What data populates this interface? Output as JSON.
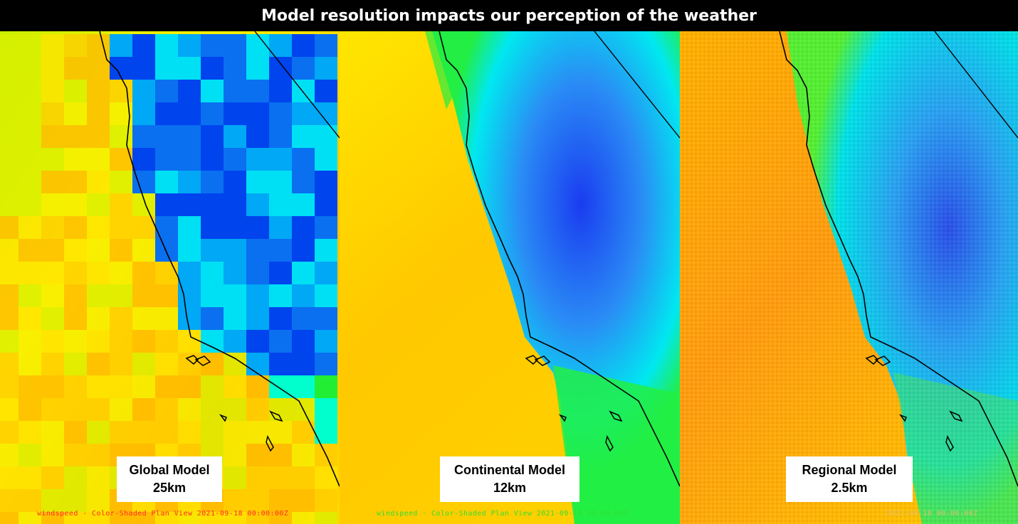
{
  "title": "Model resolution impacts our perception of the weather",
  "panels": [
    {
      "name_line1": "Global Model",
      "name_line2": "25km",
      "footer": "windspeed - Color-Shaded Plan View 2021-09-18 00:00:00Z",
      "footer_color": "#ff2a2a",
      "style": "coarse"
    },
    {
      "name_line1": "Continental Model",
      "name_line2": "12km",
      "footer": "windspeed - Color-Shaded Plan View 2021-09-18 00:00:00Z",
      "footer_color": "#33dd33",
      "style": "smooth"
    },
    {
      "name_line1": "Regional Model",
      "name_line2": "2.5km",
      "footer": "2021-09-18 00:00:00Z",
      "footer_color": "#e0c070",
      "style": "fine"
    }
  ],
  "colors": {
    "ocean_yellow": "#ffff00",
    "ocean_orange": "#ffb000",
    "land_green": "#33ee22",
    "land_cyan": "#00ffff",
    "land_blue": "#0055ee",
    "coastline": "#000000"
  }
}
